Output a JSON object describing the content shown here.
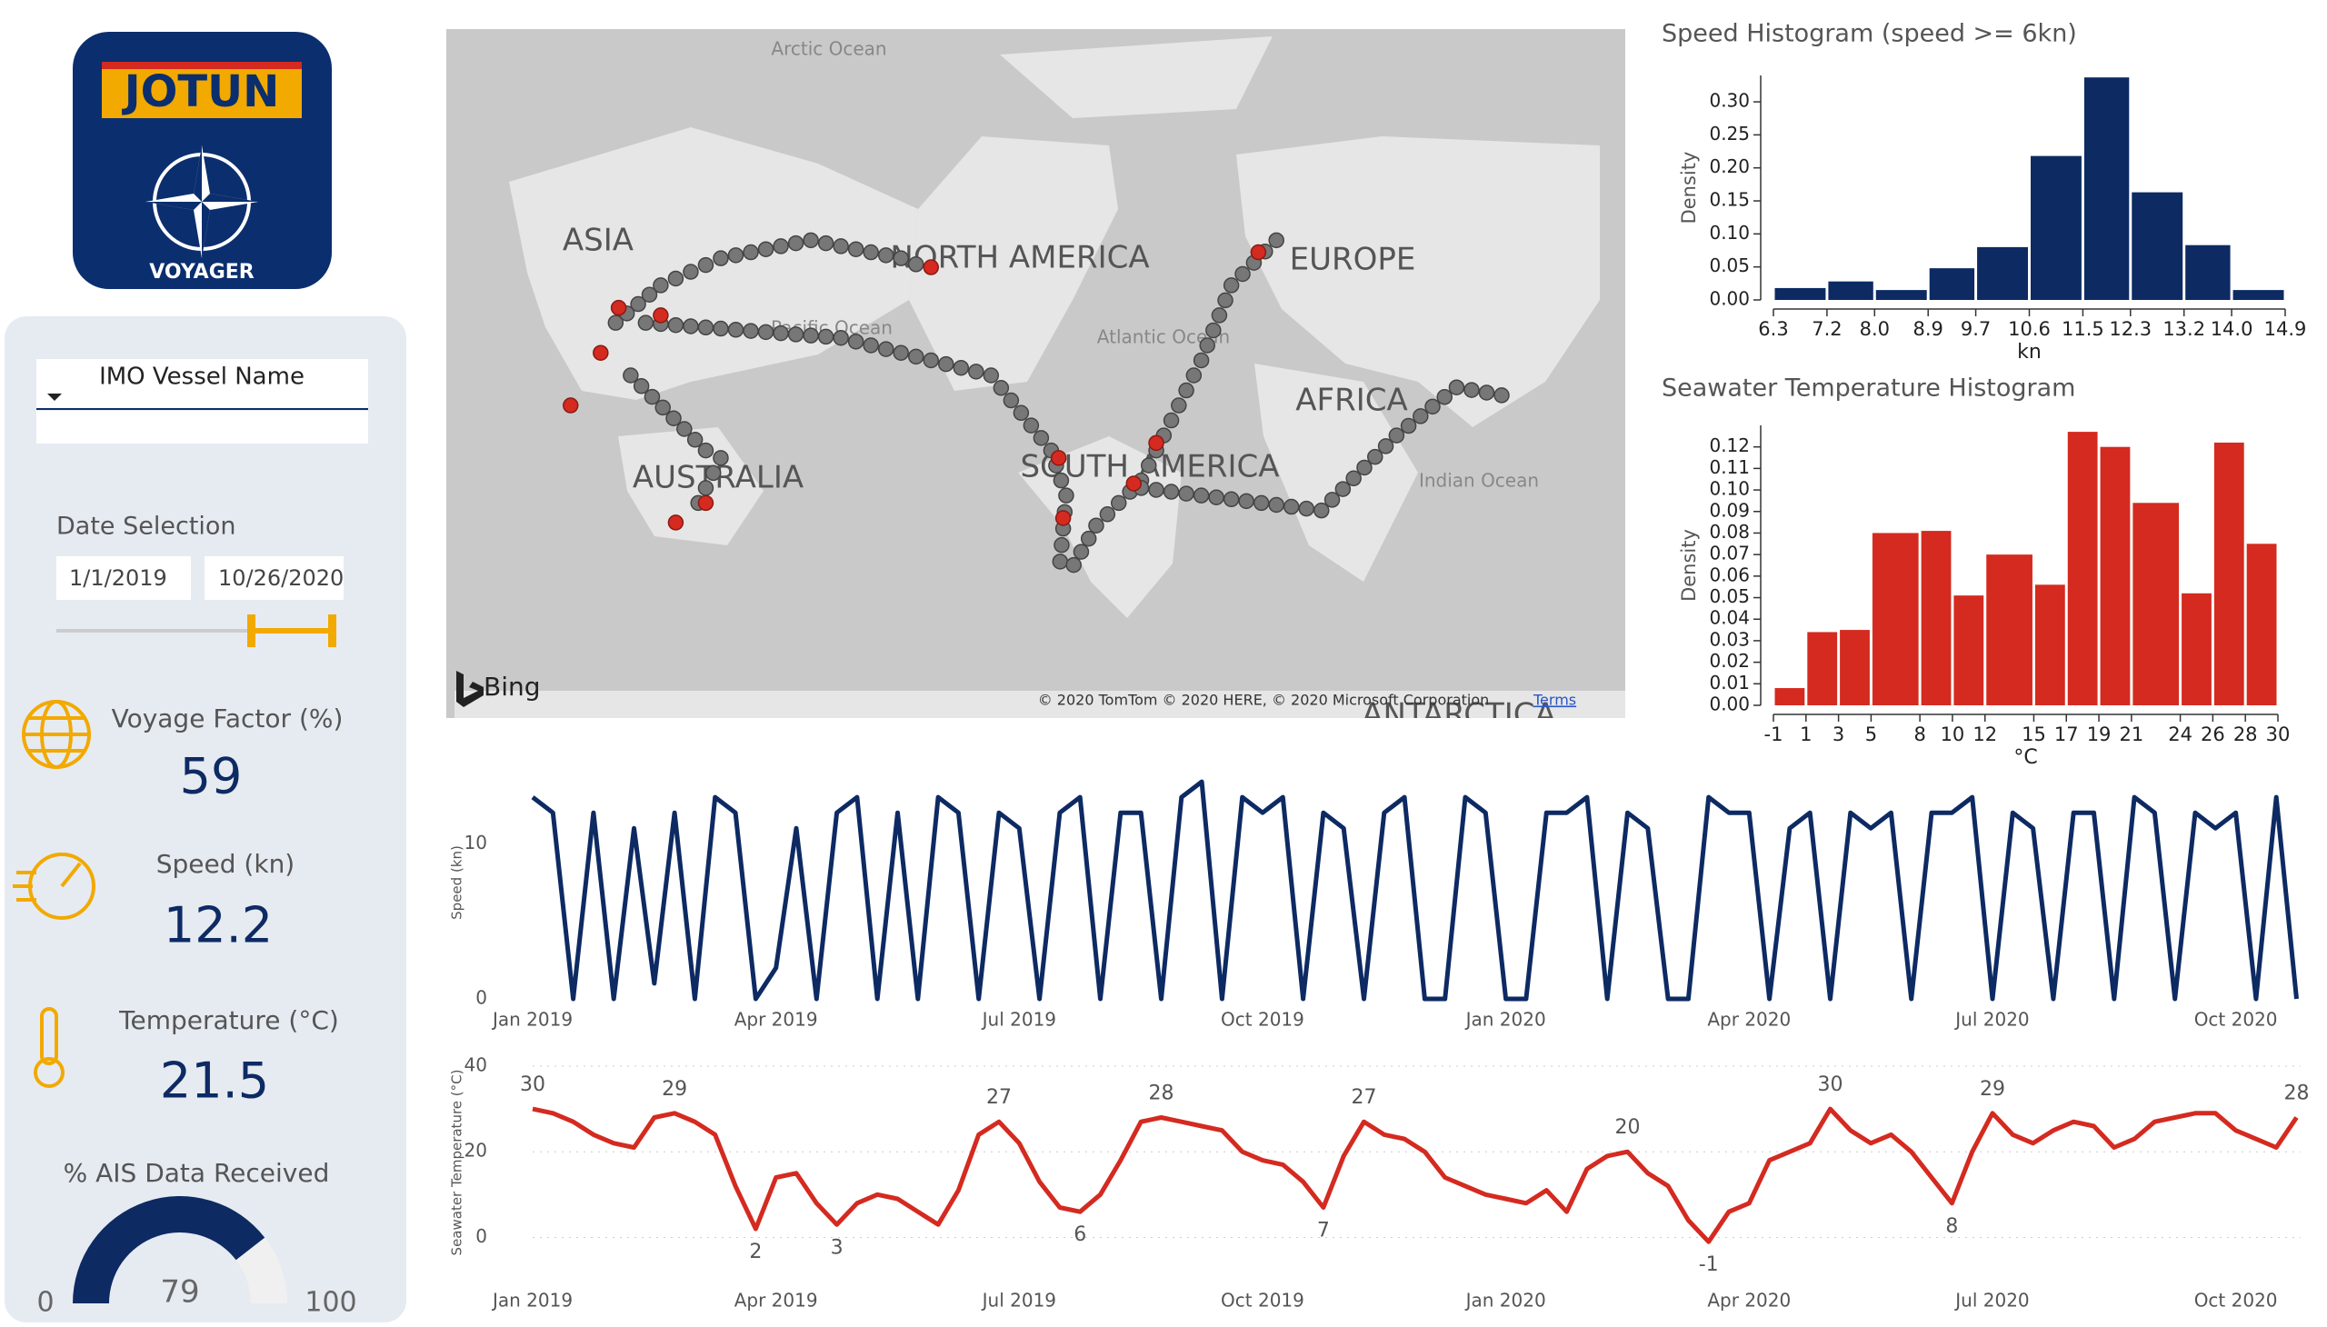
{
  "sidebar": {
    "logo_brand": "JOTUN",
    "logo_product": "VOYAGER",
    "vessel_filter": "IMO Vessel Name",
    "date_title": "Date Selection",
    "date_start": "1/1/2019",
    "date_end": "10/26/2020",
    "kpis": [
      {
        "label": "Voyage Factor (%)",
        "value": 59
      },
      {
        "label": "Speed (kn)",
        "value": 12.2
      },
      {
        "label": "Temperature (°C)",
        "value": 21.5
      }
    ]
  },
  "map": {
    "labels": [
      "Arctic Ocean",
      "ASIA",
      "NORTH AMERICA",
      "EUROPE",
      "Pacific Ocean",
      "Atlantic Ocean",
      "AFRICA",
      "SOUTH AMERICA",
      "AUSTRALIA",
      "Indian Ocean",
      "ANTARCTICA"
    ],
    "provider": "Bing",
    "copyright": "© 2020 TomTom © 2020 HERE, © 2020 Microsoft Corporation",
    "terms": "Terms"
  },
  "chart_data": [
    {
      "type": "histogram",
      "title": "Speed Histogram (speed >= 6kn)",
      "x_label": "kn",
      "y_label": "Density",
      "color": "#0d2a63",
      "bins": [
        6.3,
        7.2,
        8.0,
        8.9,
        9.7,
        10.6,
        11.5,
        12.3,
        13.2,
        14.0,
        14.9
      ],
      "values": [
        0.018,
        0.028,
        0.015,
        0.048,
        0.08,
        0.218,
        0.337,
        0.163,
        0.083,
        0.015
      ],
      "xlim": [
        6.3,
        14.9
      ],
      "xticks": [
        6.3,
        7.2,
        {
          "value": 8,
          "label": "8.0"
        },
        8.9,
        9.7,
        10.6,
        11.5,
        12.3,
        13.2,
        {
          "value": 14,
          "label": "14.0"
        },
        14.9
      ],
      "ylim": [
        0,
        0.34
      ],
      "yticks": [
        {
          "value": 0,
          "label": "0.00"
        },
        {
          "value": 0.05,
          "label": "0.05"
        },
        {
          "value": 0.1,
          "label": "0.10"
        },
        {
          "value": 0.15,
          "label": "0.15"
        },
        {
          "value": 0.2,
          "label": "0.20"
        },
        {
          "value": 0.25,
          "label": "0.25"
        },
        {
          "value": 0.3,
          "label": "0.30"
        }
      ]
    },
    {
      "type": "histogram",
      "title": "Seawater Temperature Histogram",
      "x_label": "°C",
      "y_label": "Density",
      "color": "#d42a20",
      "bins": [
        -1,
        1,
        3,
        5,
        8,
        10,
        12,
        15,
        17,
        19,
        21,
        24,
        26,
        28,
        30
      ],
      "values": [
        0.008,
        0.034,
        0.035,
        0.08,
        0.081,
        0.051,
        0.07,
        0.056,
        0.127,
        0.12,
        0.094,
        0.052,
        0.122,
        0.075
      ],
      "xlim": [
        -1,
        30
      ],
      "xticks": [
        -1,
        1,
        3,
        5,
        8,
        10,
        12,
        15,
        17,
        19,
        21,
        24,
        26,
        28,
        30
      ],
      "ylim": [
        0,
        0.13
      ],
      "yticks": [
        {
          "value": 0,
          "label": "0.00"
        },
        {
          "value": 0.01,
          "label": "0.01"
        },
        {
          "value": 0.02,
          "label": "0.02"
        },
        {
          "value": 0.03,
          "label": "0.03"
        },
        {
          "value": 0.04,
          "label": "0.04"
        },
        {
          "value": 0.05,
          "label": "0.05"
        },
        {
          "value": 0.06,
          "label": "0.06"
        },
        {
          "value": 0.07,
          "label": "0.07"
        },
        {
          "value": 0.08,
          "label": "0.08"
        },
        {
          "value": 0.09,
          "label": "0.09"
        },
        {
          "value": 0.1,
          "label": "0.10"
        },
        {
          "value": 0.11,
          "label": "0.11"
        },
        {
          "value": 0.12,
          "label": "0.12"
        }
      ]
    },
    {
      "type": "line",
      "y_label": "Speed (kn)",
      "color": "#0d2a63",
      "x": [
        0,
        0.25,
        0.5,
        0.75,
        1,
        1.25,
        1.5,
        1.75,
        2,
        2.25,
        2.5,
        2.75,
        3,
        3.25,
        3.5,
        3.75,
        4,
        4.25,
        4.5,
        4.75,
        5,
        5.25,
        5.5,
        5.75,
        6,
        6.25,
        6.5,
        6.75,
        7,
        7.25,
        7.5,
        7.75,
        8,
        8.25,
        8.5,
        8.75,
        9,
        9.25,
        9.5,
        9.75,
        10,
        10.25,
        10.5,
        10.75,
        11,
        11.25,
        11.5,
        11.75,
        12,
        12.25,
        12.5,
        12.75,
        13,
        13.25,
        13.5,
        13.75,
        14,
        14.25,
        14.5,
        14.75,
        15,
        15.25,
        15.5,
        15.75,
        16,
        16.25,
        16.5,
        16.75,
        17,
        17.25,
        17.5,
        17.75,
        18,
        18.25,
        18.5,
        18.75,
        19,
        19.25,
        19.5,
        19.75,
        20,
        20.25,
        20.5,
        20.75,
        21,
        21.25,
        21.5,
        21.75
      ],
      "values": [
        13,
        12,
        0,
        12,
        0,
        11,
        1,
        12,
        0,
        13,
        12,
        0,
        2,
        11,
        0,
        12,
        13,
        0,
        12,
        0,
        13,
        12,
        0,
        12,
        11,
        0,
        12,
        13,
        0,
        12,
        12,
        0,
        13,
        14,
        0,
        13,
        12,
        13,
        0,
        12,
        11,
        0,
        12,
        13,
        0,
        0,
        13,
        12,
        0,
        0,
        12,
        12,
        13,
        0,
        12,
        11,
        0,
        0,
        13,
        12,
        12,
        0,
        11,
        12,
        0,
        12,
        11,
        12,
        0,
        12,
        12,
        13,
        0,
        12,
        11,
        0,
        12,
        12,
        0,
        13,
        12,
        0,
        12,
        11,
        12,
        0,
        13,
        0
      ],
      "xlim": [
        0,
        21.8
      ],
      "xticks": [
        {
          "value": 0,
          "label": "Jan 2019"
        },
        {
          "value": 3,
          "label": "Apr 2019"
        },
        {
          "value": 6,
          "label": "Jul 2019"
        },
        {
          "value": 9,
          "label": "Oct 2019"
        },
        {
          "value": 12,
          "label": "Jan 2020"
        },
        {
          "value": 15,
          "label": "Apr 2020"
        },
        {
          "value": 18,
          "label": "Jul 2020"
        },
        {
          "value": 21,
          "label": "Oct 2020"
        }
      ],
      "ylim": [
        0,
        15
      ],
      "yticks": [
        0,
        10
      ]
    },
    {
      "type": "line",
      "y_label": "Seawater Temperature (°C)",
      "color": "#d42a20",
      "grid": true,
      "x": [
        0,
        0.25,
        0.5,
        0.75,
        1,
        1.25,
        1.5,
        1.75,
        2,
        2.25,
        2.5,
        2.75,
        3,
        3.25,
        3.5,
        3.75,
        4,
        4.25,
        4.5,
        4.75,
        5,
        5.25,
        5.5,
        5.75,
        6,
        6.25,
        6.5,
        6.75,
        7,
        7.25,
        7.5,
        7.75,
        8,
        8.25,
        8.5,
        8.75,
        9,
        9.25,
        9.5,
        9.75,
        10,
        10.25,
        10.5,
        10.75,
        11,
        11.25,
        11.5,
        11.75,
        12,
        12.25,
        12.5,
        12.75,
        13,
        13.25,
        13.5,
        13.75,
        14,
        14.25,
        14.5,
        14.75,
        15,
        15.25,
        15.5,
        15.75,
        16,
        16.25,
        16.5,
        16.75,
        17,
        17.25,
        17.5,
        17.75,
        18,
        18.25,
        18.5,
        18.75,
        19,
        19.25,
        19.5,
        19.75,
        20,
        20.25,
        20.5,
        20.75,
        21,
        21.25,
        21.5,
        21.75
      ],
      "values": [
        30,
        29,
        27,
        24,
        22,
        21,
        28,
        29,
        27,
        24,
        12,
        2,
        14,
        15,
        8,
        3,
        8,
        10,
        9,
        6,
        3,
        11,
        24,
        27,
        22,
        13,
        7,
        6,
        10,
        18,
        27,
        28,
        27,
        26,
        25,
        20,
        18,
        17,
        13,
        7,
        19,
        27,
        24,
        23,
        20,
        14,
        12,
        10,
        9,
        8,
        11,
        6,
        16,
        19,
        20,
        15,
        12,
        4,
        -1,
        6,
        8,
        18,
        20,
        22,
        30,
        25,
        22,
        24,
        20,
        14,
        8,
        20,
        29,
        24,
        22,
        25,
        27,
        26,
        21,
        23,
        27,
        28,
        29,
        29,
        25,
        23,
        21,
        28
      ],
      "annotations": [
        {
          "x": 0,
          "value": 30
        },
        {
          "x": 1.75,
          "value": 29
        },
        {
          "x": 2.75,
          "value": 2
        },
        {
          "x": 3.75,
          "value": 3
        },
        {
          "x": 5.75,
          "value": 27
        },
        {
          "x": 6.75,
          "value": 6
        },
        {
          "x": 7.75,
          "value": 28
        },
        {
          "x": 9.75,
          "value": 7
        },
        {
          "x": 10.25,
          "value": 27
        },
        {
          "x": 13.5,
          "value": 20
        },
        {
          "x": 14.5,
          "value": -1
        },
        {
          "x": 16,
          "value": 30
        },
        {
          "x": 17.5,
          "value": 8
        },
        {
          "x": 18,
          "value": 29
        },
        {
          "x": 21.75,
          "value": 28
        }
      ],
      "xlim": [
        0,
        21.8
      ],
      "xticks": [
        {
          "value": 0,
          "label": "Jan 2019"
        },
        {
          "value": 3,
          "label": "Apr 2019"
        },
        {
          "value": 6,
          "label": "Jul 2019"
        },
        {
          "value": 9,
          "label": "Oct 2019"
        },
        {
          "value": 12,
          "label": "Jan 2020"
        },
        {
          "value": 15,
          "label": "Apr 2020"
        },
        {
          "value": 18,
          "label": "Jul 2020"
        },
        {
          "value": 21,
          "label": "Oct 2020"
        }
      ],
      "ylim": [
        -5,
        40
      ],
      "yticks": [
        0,
        20,
        40
      ]
    },
    {
      "type": "gauge",
      "title": "% AIS Data Received",
      "value": 79,
      "min": 0,
      "max": 100,
      "color": "#0d2a63"
    }
  ]
}
